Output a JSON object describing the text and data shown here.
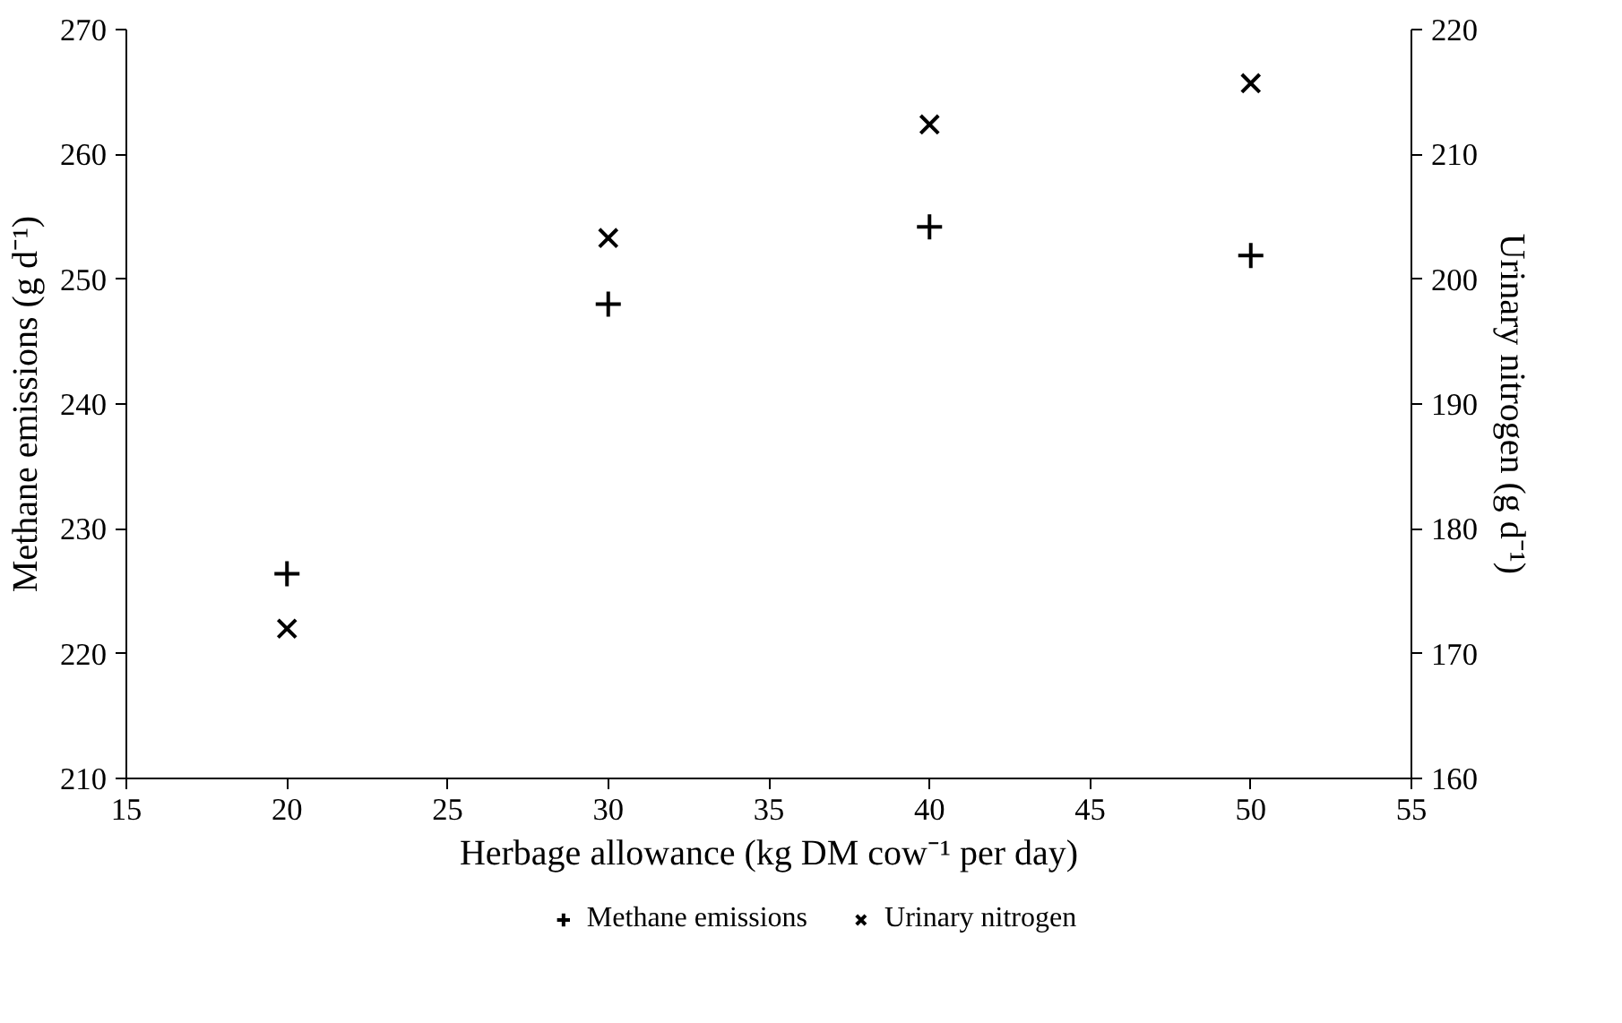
{
  "chart_data": {
    "type": "scatter",
    "xlabel": "Herbage allowance (kg DM cow⁻¹ per day)",
    "ylabel": "Methane emissions (g d⁻¹)",
    "y2label": "Urinary nitrogen (g d⁻¹)",
    "x": [
      20,
      30,
      40,
      50
    ],
    "series": [
      {
        "name": "Methane emissions",
        "color": "#000000",
        "marker": "cross",
        "values": [
          226.4,
          248.0,
          254.2,
          251.9
        ]
      },
      {
        "name": "Urinary nitrogen",
        "color": "#000000",
        "marker": "x",
        "axis": "y2",
        "values": [
          172.0,
          203.3,
          212.4,
          215.7
        ]
      }
    ],
    "xlim": [
      15,
      55
    ],
    "xticks": [
      15,
      20,
      25,
      30,
      35,
      40,
      45,
      50,
      55
    ],
    "ylim": [
      210,
      270
    ],
    "yticks": [
      210,
      220,
      230,
      240,
      250,
      260,
      270
    ],
    "y2lim": [
      160,
      220
    ],
    "y2ticks": [
      160,
      170,
      180,
      190,
      200,
      210,
      220
    ],
    "grid": false,
    "legend": "bottom"
  }
}
